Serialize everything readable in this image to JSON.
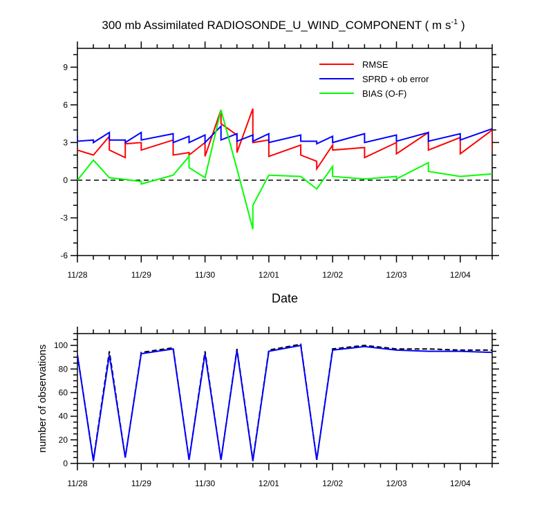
{
  "figure": {
    "title_main": "300 mb Assimilated RADIOSONDE_U_WIND_COMPONENT ( m s",
    "title_exp": "-1",
    "title_end": " )"
  },
  "chart_data": [
    {
      "type": "line",
      "title": "300 mb Assimilated RADIOSONDE_U_WIND_COMPONENT ( m s-1 )",
      "xlabel": "Date",
      "ylabel": "",
      "x_ticks": [
        "11/28",
        "11/29",
        "11/30",
        "12/01",
        "12/02",
        "12/03",
        "12/04"
      ],
      "x_tick_days": [
        0,
        1,
        2,
        3,
        4,
        5,
        6
      ],
      "xlim": [
        0,
        6.5
      ],
      "ylim": [
        -6,
        10.5
      ],
      "y_ticks": [
        -6,
        -3,
        0,
        3,
        6,
        9
      ],
      "legend_position": "top-right",
      "reference_line": {
        "y": 0,
        "style": "dashed"
      },
      "colors": {
        "rmse": "#ff0000",
        "sprd": "#0000ff",
        "bias": "#00ff00"
      },
      "series": [
        {
          "name": "RMSE",
          "color": "#ff0000",
          "x": [
            0,
            0.25,
            0.25,
            0.5,
            0.5,
            0.75,
            0.75,
            1.0,
            1.0,
            1.5,
            1.5,
            1.75,
            1.75,
            2.0,
            2.0,
            2.25,
            2.25,
            2.5,
            2.5,
            2.75,
            2.75,
            3.0,
            3.0,
            3.5,
            3.5,
            3.75,
            3.75,
            4.0,
            4.0,
            4.5,
            4.5,
            5.0,
            5.0,
            5.5,
            5.5,
            6.0,
            6.0,
            6.5,
            6.5
          ],
          "y": [
            2.4,
            2.0,
            2.0,
            3.5,
            2.4,
            1.8,
            2.9,
            3.0,
            2.4,
            3.2,
            2.0,
            2.2,
            2.0,
            3.0,
            1.9,
            5.6,
            4.5,
            3.6,
            2.2,
            5.7,
            3.0,
            3.2,
            1.9,
            2.8,
            2.0,
            1.5,
            0.9,
            2.8,
            2.4,
            2.6,
            1.8,
            3.0,
            2.1,
            3.8,
            2.4,
            3.4,
            2.1,
            4.0,
            2.3
          ]
        },
        {
          "name": "SPRD + ob error",
          "color": "#0000ff",
          "x": [
            0,
            0,
            0.25,
            0.25,
            0.5,
            0.5,
            0.75,
            0.75,
            1.0,
            1.0,
            1.5,
            1.5,
            1.75,
            1.75,
            2.0,
            2.0,
            2.25,
            2.25,
            2.5,
            2.5,
            2.75,
            2.75,
            3.0,
            3.0,
            3.5,
            3.5,
            3.75,
            3.75,
            4.0,
            4.0,
            4.5,
            4.5,
            5.0,
            5.0,
            5.5,
            5.5,
            6.0,
            6.0,
            6.5
          ],
          "y": [
            3.6,
            3.1,
            3.2,
            3.0,
            3.8,
            3.2,
            3.2,
            3.0,
            3.8,
            3.2,
            3.7,
            3.0,
            3.5,
            3.0,
            3.6,
            3.0,
            4.3,
            3.2,
            3.7,
            3.1,
            3.6,
            3.1,
            3.7,
            3.0,
            3.6,
            3.1,
            3.1,
            2.9,
            3.5,
            3.0,
            3.7,
            3.0,
            3.6,
            3.1,
            3.8,
            3.1,
            3.7,
            3.2,
            4.1
          ]
        },
        {
          "name": "BIAS (O-F)",
          "color": "#00ff00",
          "x": [
            0,
            0.25,
            0.5,
            1.0,
            1.0,
            1.5,
            1.75,
            1.75,
            2.0,
            2.25,
            2.5,
            2.75,
            2.75,
            3.0,
            3.5,
            3.75,
            4.0,
            4.0,
            4.5,
            5.0,
            5.0,
            5.5,
            5.5,
            6.0,
            6.5
          ],
          "y": [
            0.0,
            1.6,
            0.2,
            -0.1,
            -0.3,
            0.4,
            1.9,
            1.0,
            0.2,
            5.6,
            0.9,
            -3.9,
            -2.0,
            0.4,
            0.3,
            -0.7,
            1.1,
            0.3,
            0.1,
            0.3,
            0.1,
            1.4,
            0.7,
            0.3,
            0.5
          ]
        }
      ]
    },
    {
      "type": "line",
      "title": "",
      "xlabel": "",
      "ylabel": "number of observations",
      "x_ticks": [
        "11/28",
        "11/29",
        "11/30",
        "12/01",
        "12/02",
        "12/03",
        "12/04"
      ],
      "x_tick_days": [
        0,
        1,
        2,
        3,
        4,
        5,
        6
      ],
      "xlim": [
        0,
        6.5
      ],
      "ylim": [
        0,
        110
      ],
      "y_ticks": [
        0,
        20,
        40,
        60,
        80,
        100
      ],
      "series": [
        {
          "name": "",
          "style": "dashed",
          "color": "#000000",
          "x": [
            0,
            0.25,
            0.5,
            0.75,
            1.0,
            1.5,
            1.75,
            2.0,
            2.25,
            2.5,
            2.75,
            3.0,
            3.5,
            3.75,
            4.0,
            4.5,
            5.0,
            5.5,
            6.0,
            6.5
          ],
          "y": [
            92,
            3,
            95,
            5,
            94,
            98,
            3,
            95,
            3,
            97,
            3,
            96,
            101,
            3,
            97,
            100,
            97,
            97,
            96,
            96
          ]
        },
        {
          "name": "",
          "style": "solid",
          "color": "#0000ff",
          "x": [
            0,
            0.25,
            0.5,
            0.75,
            1.0,
            1.5,
            1.75,
            2.0,
            2.25,
            2.5,
            2.75,
            3.0,
            3.5,
            3.75,
            4.0,
            4.5,
            5.0,
            5.5,
            6.0,
            6.5
          ],
          "y": [
            92,
            2,
            92,
            5,
            93,
            97,
            3,
            93,
            3,
            96,
            2,
            95,
            100,
            3,
            96,
            99,
            96,
            95,
            95,
            94
          ]
        }
      ]
    }
  ]
}
